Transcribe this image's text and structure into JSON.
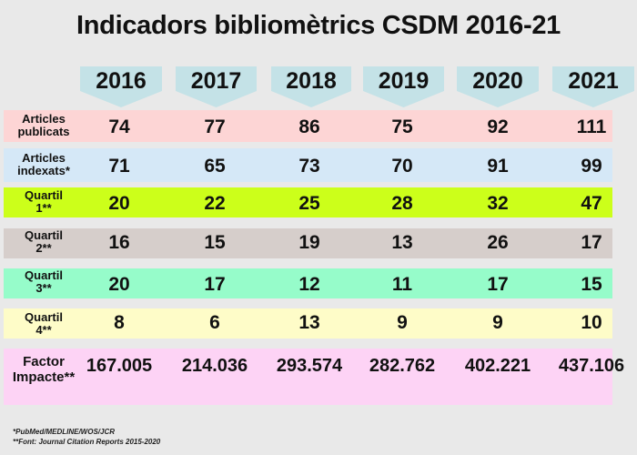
{
  "title": "Indicadors bibliomètrics CSDM 2016-21",
  "years": [
    "2016",
    "2017",
    "2018",
    "2019",
    "2020",
    "2021"
  ],
  "rows": [
    {
      "label1": "Articles",
      "label2": "publicats",
      "color": "#fdd5d5",
      "values": [
        "74",
        "77",
        "86",
        "75",
        "92",
        "111"
      ]
    },
    {
      "label1": "Articles",
      "label2": "indexats*",
      "color": "#d5e8f7",
      "values": [
        "71",
        "65",
        "73",
        "70",
        "91",
        "99"
      ]
    },
    {
      "label1": "Quartil",
      "label2": "1**",
      "color": "#ccff1a",
      "values": [
        "20",
        "22",
        "25",
        "28",
        "32",
        "47"
      ]
    },
    {
      "label1": "Quartil",
      "label2": "2**",
      "color": "#d6cecb",
      "values": [
        "16",
        "15",
        "19",
        "13",
        "26",
        "17"
      ]
    },
    {
      "label1": "Quartil",
      "label2": "3**",
      "color": "#96fcca",
      "values": [
        "20",
        "17",
        "12",
        "11",
        "17",
        "15"
      ]
    },
    {
      "label1": "Quartil",
      "label2": "4**",
      "color": "#fefcc8",
      "values": [
        "8",
        "6",
        "13",
        "9",
        "9",
        "10"
      ]
    },
    {
      "label1": "Factor",
      "label2": "Impacte**",
      "color": "#fdd3f5",
      "values": [
        "167.005",
        "214.036",
        "293.574",
        "282.762",
        "402.221",
        "437.106"
      ]
    }
  ],
  "footnotes": [
    "*PubMed/MEDLINE/WOS/JCR",
    "**Font: Journal Citation Reports 2015-2020"
  ]
}
